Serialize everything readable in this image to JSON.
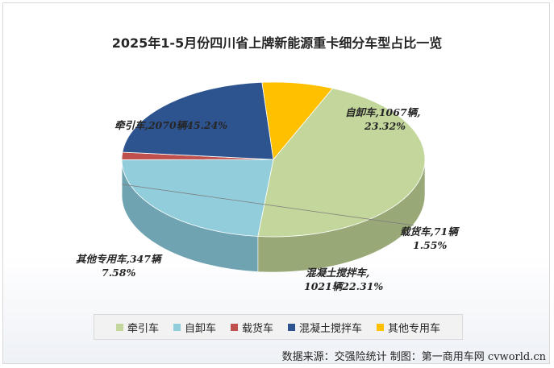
{
  "chart_data": {
    "type": "pie",
    "title": "2025年1-5月份四川省上牌新能源重卡细分车型占比一览",
    "slices": [
      {
        "name": "牵引车",
        "value": 2070,
        "percent": 45.24,
        "color": "#c3d69b",
        "side_color": "#98a877",
        "label_line1": "牵引车,2070辆45.24%",
        "label_line2": ""
      },
      {
        "name": "自卸车",
        "value": 1067,
        "percent": 23.32,
        "color": "#92cddc",
        "side_color": "#6fa3b1",
        "label_line1": "自卸车,1067辆,",
        "label_line2": "23.32%"
      },
      {
        "name": "载货车",
        "value": 71,
        "percent": 1.55,
        "color": "#c0504d",
        "side_color": "#8e3a38",
        "label_line1": "载货车,71辆",
        "label_line2": "1.55%"
      },
      {
        "name": "混凝土搅拌车",
        "value": 1021,
        "percent": 22.31,
        "color": "#2e5490",
        "side_color": "#1d3558",
        "label_line1": "混凝土搅拌车,",
        "label_line2": "1021辆22.31%"
      },
      {
        "name": "其他专用车",
        "value": 347,
        "percent": 7.58,
        "color": "#ffc000",
        "side_color": "#c08f00",
        "label_line1": "其他专用车,347辆",
        "label_line2": "7.58%"
      }
    ],
    "legend_placement": "bottom"
  },
  "source_text": "数据来源：交强险统计  制图：第一商用车网 cvworld.cn"
}
